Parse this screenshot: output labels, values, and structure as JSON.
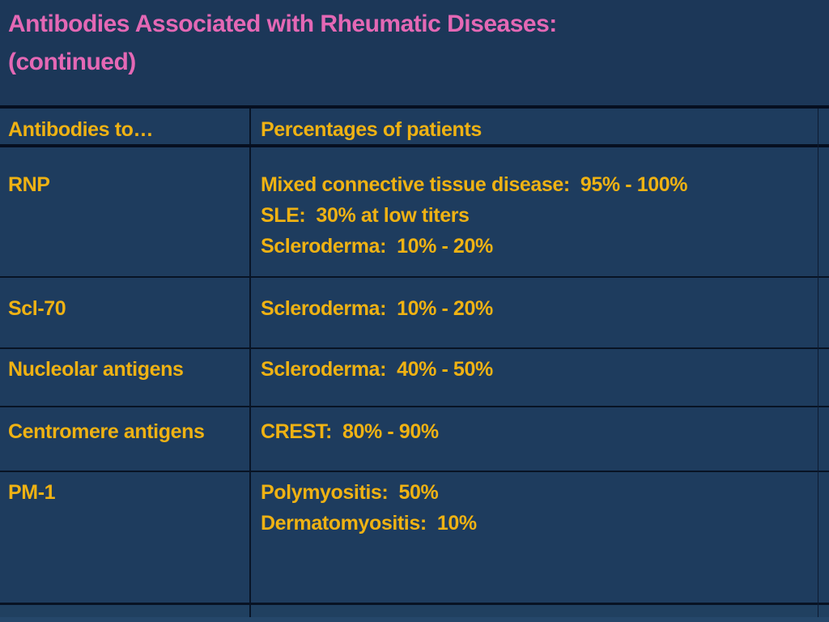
{
  "title": {
    "line1": "Antibodies Associated with Rheumatic Diseases:",
    "line2": "(continued)"
  },
  "table": {
    "headers": [
      "Antibodies to…",
      "Percentages of patients"
    ],
    "rows": [
      {
        "antibody": "RNP",
        "values": [
          "Mixed connective tissue disease:  95% - 100%",
          "SLE:  30% at low titers",
          "Scleroderma:  10% - 20%"
        ]
      },
      {
        "antibody": "Scl-70",
        "values": [
          "Scleroderma:  10% - 20%"
        ]
      },
      {
        "antibody": "Nucleolar antigens",
        "values": [
          "Scleroderma:  40% - 50%"
        ]
      },
      {
        "antibody": "Centromere antigens",
        "values": [
          "CREST:  80% - 90%"
        ]
      },
      {
        "antibody": "PM-1",
        "values": [
          "Polymyositis:  50%",
          "Dermatomyositis:  10%"
        ]
      }
    ]
  },
  "colors": {
    "background_navy": "#1c3758",
    "cell_navy": "#1e3c5e",
    "title_pink": "#e468b5",
    "text_gold": "#efb213",
    "grid_line": "#081324"
  }
}
